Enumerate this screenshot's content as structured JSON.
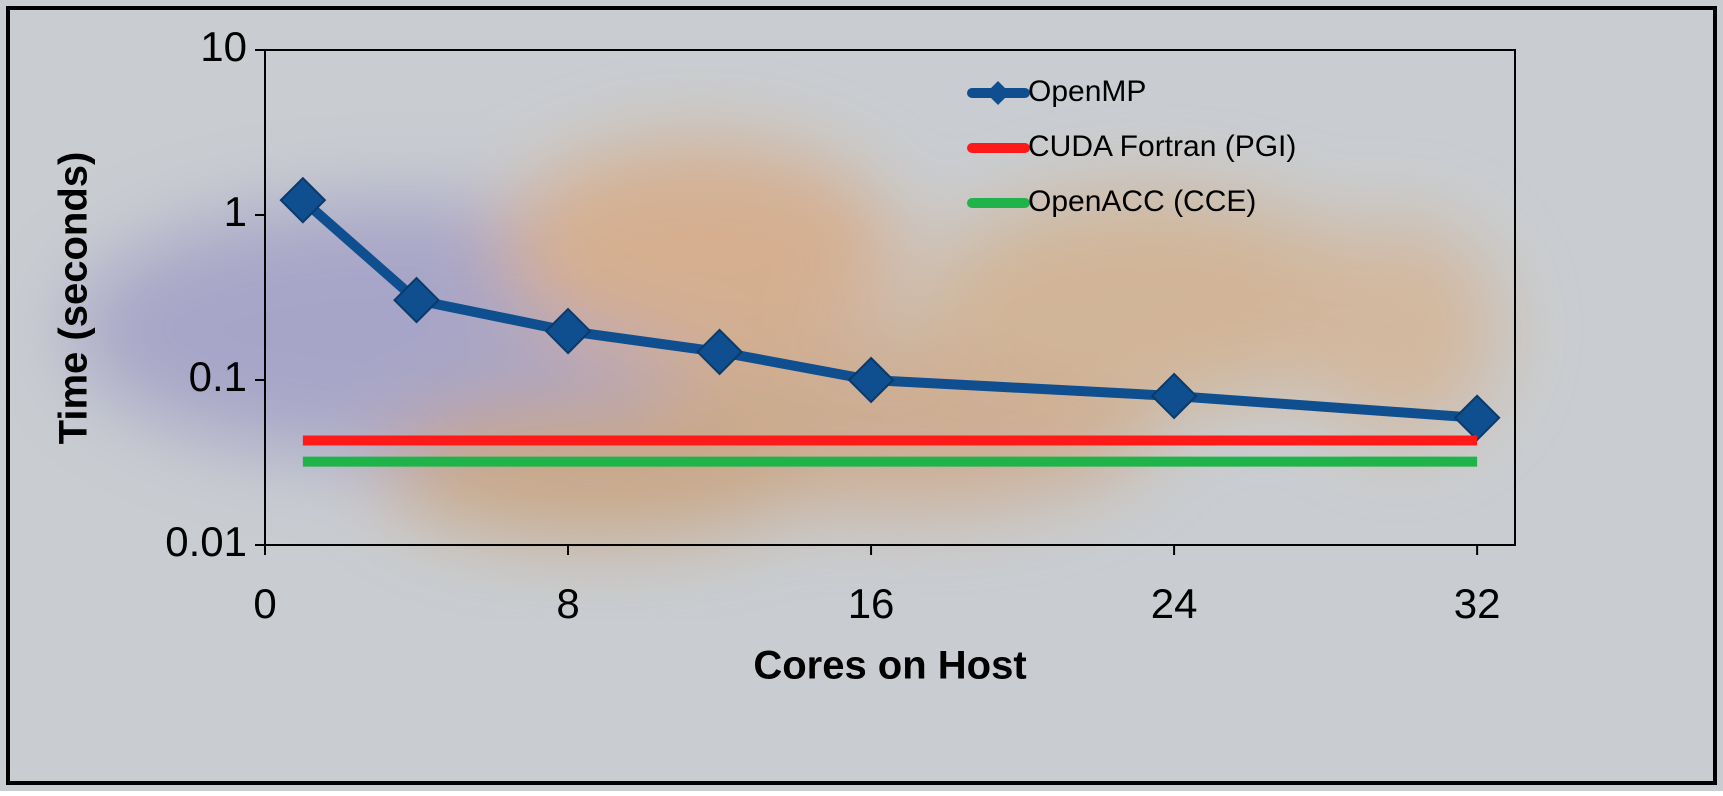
{
  "chart_data": {
    "type": "line",
    "xlabel": "Cores on Host",
    "ylabel": "Time (seconds)",
    "series": [
      {
        "name": "OpenMP",
        "color": "#0f4f8f",
        "marker": "diamond",
        "x": [
          1,
          4,
          8,
          12,
          16,
          24,
          32
        ],
        "values": [
          1.23,
          0.305,
          0.198,
          0.148,
          0.1,
          0.08,
          0.059
        ]
      },
      {
        "name": "CUDA Fortran (PGI)",
        "color": "#ff1a1a",
        "x": [
          1,
          32
        ],
        "values": [
          0.043,
          0.043
        ]
      },
      {
        "name": "OpenACC (CCE)",
        "color": "#1fb34a",
        "x": [
          1,
          32
        ],
        "values": [
          0.032,
          0.032
        ]
      }
    ],
    "xlim": [
      0,
      33
    ],
    "xticks": [
      0,
      8,
      16,
      24,
      32
    ],
    "ylim": [
      0.01,
      10
    ],
    "yticks": [
      0.01,
      0.1,
      1,
      10
    ],
    "log_y": true,
    "grid": false,
    "legend": "upper right"
  }
}
